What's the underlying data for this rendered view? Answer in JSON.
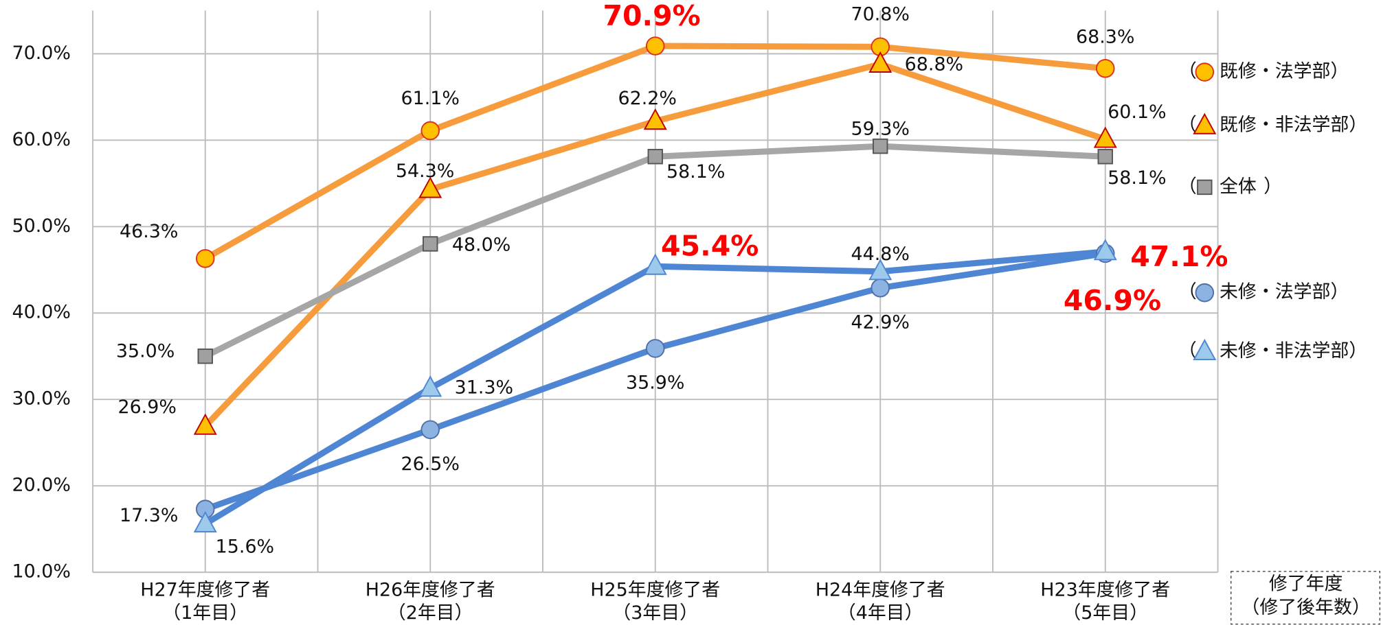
{
  "chart_data": {
    "type": "line",
    "categories": [
      "H27年度修了者",
      "H26年度修了者",
      "H25年度修了者",
      "H24年度修了者",
      "H23年度修了者"
    ],
    "category_sublabels": [
      "（1年目）",
      "（2年目）",
      "（3年目）",
      "（4年目）",
      "（5年目）"
    ],
    "xlabel": [
      "修了年度",
      "（修了後年数）"
    ],
    "ylim": [
      10,
      75
    ],
    "yticks": [
      {
        "value": 10,
        "label": "10.0%"
      },
      {
        "value": 20,
        "label": "20.0%"
      },
      {
        "value": 30,
        "label": "30.0%"
      },
      {
        "value": 40,
        "label": "40.0%"
      },
      {
        "value": 50,
        "label": "50.0%"
      },
      {
        "value": 60,
        "label": "60.0%"
      },
      {
        "value": 70,
        "label": "70.0%"
      }
    ],
    "grid": true,
    "legend": "right",
    "legend_open": "（",
    "legend_close": "）",
    "highlight_color": "#ff0000",
    "series": [
      {
        "name": "既修・法学部",
        "color": "#f79c3c",
        "marker": "circle",
        "marker_fill": "#ffc000",
        "marker_stroke": "#e0301e",
        "values": [
          46.3,
          61.1,
          70.9,
          70.8,
          68.3
        ],
        "value_labels": [
          "46.3%",
          "61.1%",
          "70.9%",
          "70.8%",
          "68.3%"
        ],
        "highlight": [
          2
        ]
      },
      {
        "name": "既修・非法学部",
        "color": "#f79c3c",
        "marker": "triangle",
        "marker_fill": "#ffc000",
        "marker_stroke": "#c00000",
        "values": [
          26.9,
          54.3,
          62.2,
          68.8,
          60.1
        ],
        "value_labels": [
          "26.9%",
          "54.3%",
          "62.2%",
          "68.8%",
          "60.1%"
        ],
        "highlight": []
      },
      {
        "name": "全体",
        "color": "#a6a6a6",
        "marker": "square",
        "marker_fill": "#a0a0a0",
        "marker_stroke": "#555555",
        "values": [
          35.0,
          48.0,
          58.1,
          59.3,
          58.1
        ],
        "value_labels": [
          "35.0%",
          "48.0%",
          "58.1%",
          "59.3%",
          "58.1%"
        ],
        "highlight": []
      },
      {
        "name": "未修・法学部",
        "color": "#4f86d4",
        "marker": "circle",
        "marker_fill": "#8db3e2",
        "marker_stroke": "#4f6fa8",
        "values": [
          17.3,
          26.5,
          35.9,
          42.9,
          46.9
        ],
        "value_labels": [
          "17.3%",
          "26.5%",
          "35.9%",
          "42.9%",
          "46.9%"
        ],
        "highlight": [
          4
        ]
      },
      {
        "name": "未修・非法学部",
        "color": "#4f86d4",
        "marker": "triangle",
        "marker_fill": "#9dc9ea",
        "marker_stroke": "#4f86d4",
        "values": [
          15.6,
          31.3,
          45.4,
          44.8,
          47.1
        ],
        "value_labels": [
          "15.6%",
          "31.3%",
          "45.4%",
          "44.8%",
          "47.1%"
        ],
        "highlight": [
          2,
          4
        ]
      }
    ]
  }
}
